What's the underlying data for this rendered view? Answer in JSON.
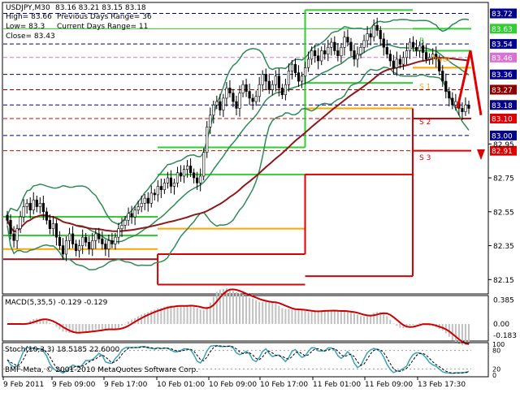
{
  "header": {
    "symbol": "USDJPY,M30",
    "quote": "83.16 83.21 83.15 83.18",
    "high": "High= 83.66",
    "low": "Low= 83.3",
    "close": "Close= 83.43",
    "prev_range": "Previous Days Range= 36",
    "curr_range": "Current Days Range= 11"
  },
  "copyright": "BMF-Meta, © 2001-2010 MetaQuotes Software Corp.",
  "colors": {
    "background": "#ffffff",
    "frame": "#000000",
    "candle_up": "#ffffff",
    "candle_down": "#000000",
    "bollinger": "#2e8b57",
    "ma_slow": "#8b1a1a",
    "pivot_green": "#32cd32",
    "pivot_orange": "#ffa500",
    "pivot_red": "#dc0000",
    "forecast_arrow": "#e00000",
    "macd_hist": "#c0c0c0",
    "macd_signal": "#cc0000",
    "stoch_main": "#3aa3b8",
    "stoch_signal": "#000000"
  },
  "chart_data": [
    {
      "type": "candlestick",
      "title": "USDJPY,M30",
      "ylim": [
        82.07,
        83.78
      ],
      "grid": false,
      "price_labels": [
        {
          "value": 83.72,
          "text": "83.72",
          "bg": "#00008b",
          "line": "#00008b",
          "dash": true
        },
        {
          "value": 83.63,
          "text": "83.63",
          "bg": "#32cd32",
          "line": "#32cd32",
          "dash": false
        },
        {
          "value": 83.54,
          "text": "83.54",
          "bg": "#00008b",
          "line": "#00008b",
          "dash": true
        },
        {
          "value": 83.46,
          "text": "83.46",
          "bg": "#da70d6",
          "line": "#da70d6",
          "dash": true
        },
        {
          "value": 83.36,
          "text": "83.36",
          "bg": "#00008b",
          "line": "#00008b",
          "dash": true
        },
        {
          "value": 83.27,
          "text": "83.27",
          "bg": "#8b0000",
          "line": "#8b0000",
          "dash": true
        },
        {
          "value": 83.18,
          "text": "83.18",
          "bg": "#00008b",
          "line": "#00008b",
          "dash": true
        },
        {
          "value": 83.1,
          "text": "83.10",
          "bg": "#dc0000",
          "line": "#dc0000",
          "dash": true
        },
        {
          "value": 83.0,
          "text": "83.00",
          "bg": "#00008b",
          "line": "#00008b",
          "dash": true
        },
        {
          "value": 82.91,
          "text": "82.91",
          "bg": "#dc0000",
          "line": "#dc0000",
          "dash": true
        }
      ],
      "y_ticks": [
        {
          "value": 82.95,
          "text": "82.95"
        },
        {
          "value": 82.75,
          "text": "82.75"
        },
        {
          "value": 82.55,
          "text": "82.55"
        },
        {
          "value": 82.35,
          "text": "82.35"
        },
        {
          "value": 82.15,
          "text": "82.15"
        }
      ],
      "x_ticks": [
        "9 Feb 2011",
        "9 Feb 09:00",
        "9 Feb 17:00",
        "10 Feb 01:00",
        "10 Feb 09:00",
        "10 Feb 17:00",
        "11 Feb 01:00",
        "11 Feb 09:00",
        "13 Feb 17:30"
      ],
      "level_labels": [
        {
          "text": "R",
          "color": "#32cd32"
        },
        {
          "text": "S 1",
          "color": "#ffa500"
        },
        {
          "text": "S 2",
          "color": "#dc0000"
        },
        {
          "text": "S 3",
          "color": "#dc0000"
        },
        {
          "text": "Pivot",
          "color": "#ffa500"
        }
      ],
      "closes": [
        82.5,
        82.42,
        82.38,
        82.45,
        82.52,
        82.58,
        82.6,
        82.56,
        82.62,
        82.58,
        82.6,
        82.55,
        82.5,
        82.45,
        82.48,
        82.4,
        82.35,
        82.3,
        82.38,
        82.42,
        82.36,
        82.32,
        82.35,
        82.4,
        82.37,
        82.33,
        82.38,
        82.42,
        82.39,
        82.36,
        82.33,
        82.38,
        82.36,
        82.4,
        82.45,
        82.47,
        82.5,
        82.54,
        82.52,
        82.56,
        82.58,
        82.6,
        82.63,
        82.6,
        82.66,
        82.65,
        82.7,
        82.68,
        82.72,
        82.75,
        82.7,
        82.72,
        82.78,
        82.76,
        82.8,
        82.82,
        82.78,
        82.75,
        82.72,
        82.76,
        82.9,
        83.05,
        83.12,
        83.18,
        83.2,
        83.15,
        83.22,
        83.28,
        83.25,
        83.2,
        83.16,
        83.25,
        83.3,
        83.26,
        83.22,
        83.2,
        83.23,
        83.3,
        83.36,
        83.32,
        83.27,
        83.3,
        83.35,
        83.28,
        83.24,
        83.3,
        83.38,
        83.42,
        83.37,
        83.32,
        83.35,
        83.4,
        83.45,
        83.5,
        83.47,
        83.44,
        83.5,
        83.48,
        83.52,
        83.55,
        83.5,
        83.47,
        83.52,
        83.58,
        83.55,
        83.5,
        83.45,
        83.48,
        83.52,
        83.56,
        83.6,
        83.58,
        83.65,
        83.62,
        83.57,
        83.52,
        83.48,
        83.44,
        83.4,
        83.45,
        83.42,
        83.46,
        83.5,
        83.55,
        83.52,
        83.5,
        83.53,
        83.49,
        83.45,
        83.46,
        83.48,
        83.45,
        83.38,
        83.32,
        83.26,
        83.22,
        83.18,
        83.2,
        83.16,
        83.14,
        83.18,
        83.16
      ],
      "forecast": [
        [
          83.16,
          83.23
        ],
        [
          83.5,
          83.36
        ],
        [
          83.12,
          82.87
        ]
      ],
      "indicators": [
        "Bollinger Bands (green)",
        "Moving Average (dark red)",
        "Daily pivot levels (stepped)"
      ]
    },
    {
      "type": "histogram",
      "title": "MACD(5,35,5) -0.129 -0.129",
      "ylim": [
        -0.25,
        0.42
      ],
      "y_ticks": [
        {
          "value": 0.385,
          "text": "0.385"
        },
        {
          "value": 0.0,
          "text": "0.00"
        },
        {
          "value": -0.183,
          "text": "-0.183"
        }
      ]
    },
    {
      "type": "line",
      "title": "Stoch(10,3,3) 18.5185 22.6000",
      "ylim": [
        0,
        100
      ],
      "y_ticks": [
        {
          "value": 100,
          "text": "100"
        },
        {
          "value": 80,
          "text": "80"
        },
        {
          "value": 20,
          "text": "20"
        },
        {
          "value": 0,
          "text": "0"
        }
      ],
      "levels": [
        20,
        80
      ]
    }
  ]
}
